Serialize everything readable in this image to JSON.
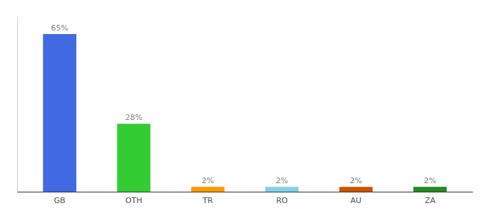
{
  "chart_data": {
    "type": "bar",
    "categories": [
      "GB",
      "OTH",
      "TR",
      "RO",
      "AU",
      "ZA"
    ],
    "values": [
      65,
      28,
      2,
      2,
      2,
      2
    ],
    "value_labels": [
      "65%",
      "28%",
      "2%",
      "2%",
      "2%",
      "2%"
    ],
    "colors": [
      "#4169e1",
      "#33cc33",
      "#ff9900",
      "#87ceeb",
      "#cc5500",
      "#228b22"
    ],
    "ylim": [
      0,
      72
    ],
    "data_labels": true,
    "tick_labels": "x",
    "grid": false
  }
}
